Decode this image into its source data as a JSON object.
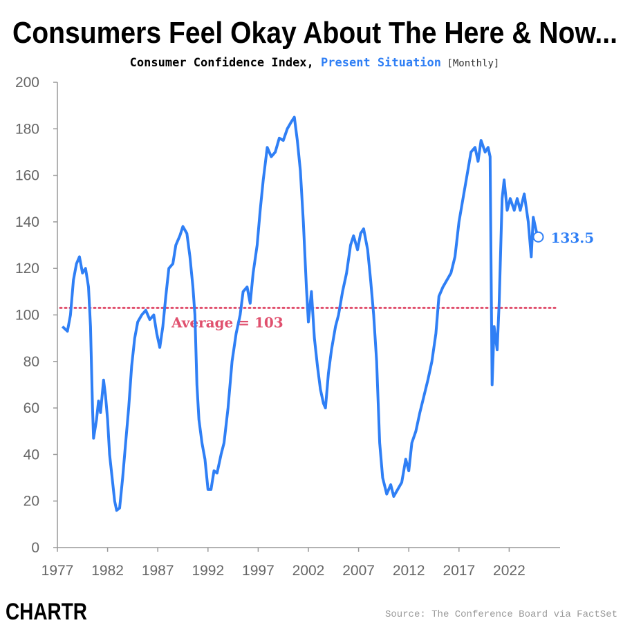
{
  "title": "Consumers Feel Okay About The Here & Now...",
  "subtitle": {
    "prefix": "Consumer Confidence Index, ",
    "highlight": "Present Situation",
    "suffix": " [Monthly]"
  },
  "source": "Source: The Conference Board via FactSet",
  "logo": "CHARTR",
  "colors": {
    "series": "#2f7ff5",
    "average": "#e0506e",
    "axis": "#999999"
  },
  "chart_data": {
    "type": "line",
    "title": "Consumers Feel Okay About The Here & Now...",
    "xlabel": "",
    "ylabel": "",
    "xlim": [
      1977,
      2025
    ],
    "ylim": [
      0,
      200
    ],
    "x_ticks": [
      "1977",
      "1982",
      "1987",
      "1992",
      "1997",
      "2002",
      "2007",
      "2012",
      "2017",
      "2022"
    ],
    "y_ticks": [
      "0",
      "20",
      "40",
      "60",
      "80",
      "100",
      "120",
      "140",
      "160",
      "180",
      "200"
    ],
    "grid": false,
    "average": {
      "value": 103,
      "label": "Average = 103"
    },
    "last_value_label": "133.5",
    "series": [
      {
        "name": "Present Situation",
        "x": [
          1977.5,
          1978.0,
          1978.3,
          1978.6,
          1978.9,
          1979.2,
          1979.5,
          1979.8,
          1980.1,
          1980.3,
          1980.5,
          1980.6,
          1980.9,
          1981.1,
          1981.3,
          1981.6,
          1981.8,
          1982.0,
          1982.2,
          1982.5,
          1982.7,
          1982.9,
          1983.2,
          1983.5,
          1983.8,
          1984.1,
          1984.4,
          1984.7,
          1985.0,
          1985.4,
          1985.8,
          1986.2,
          1986.6,
          1986.9,
          1987.2,
          1987.5,
          1987.8,
          1988.1,
          1988.5,
          1988.8,
          1989.2,
          1989.5,
          1989.9,
          1990.2,
          1990.5,
          1990.7,
          1990.9,
          1991.1,
          1991.4,
          1991.7,
          1992.0,
          1992.3,
          1992.6,
          1992.9,
          1993.3,
          1993.6,
          1994.0,
          1994.4,
          1994.8,
          1995.2,
          1995.5,
          1995.9,
          1996.2,
          1996.5,
          1996.9,
          1997.2,
          1997.5,
          1997.9,
          1998.3,
          1998.7,
          1999.1,
          1999.5,
          1999.9,
          2000.3,
          2000.6,
          2000.9,
          2001.2,
          2001.5,
          2001.8,
          2002.0,
          2002.3,
          2002.6,
          2002.9,
          2003.2,
          2003.5,
          2003.7,
          2004.0,
          2004.3,
          2004.7,
          2005.0,
          2005.4,
          2005.8,
          2006.2,
          2006.5,
          2006.9,
          2007.2,
          2007.5,
          2007.9,
          2008.2,
          2008.5,
          2008.8,
          2009.1,
          2009.4,
          2009.8,
          2010.2,
          2010.5,
          2010.9,
          2011.3,
          2011.7,
          2012.0,
          2012.3,
          2012.7,
          2013.1,
          2013.5,
          2013.9,
          2014.3,
          2014.7,
          2015.0,
          2015.4,
          2015.8,
          2016.2,
          2016.6,
          2017.0,
          2017.4,
          2017.8,
          2018.2,
          2018.6,
          2018.9,
          2019.2,
          2019.6,
          2019.9,
          2020.1,
          2020.3,
          2020.5,
          2020.8,
          2021.0,
          2021.3,
          2021.5,
          2021.8,
          2022.1,
          2022.5,
          2022.8,
          2023.1,
          2023.5,
          2023.9,
          2024.2,
          2024.4,
          2024.7,
          2024.9
        ],
        "values": [
          95,
          93,
          100,
          115,
          122,
          125,
          118,
          120,
          112,
          95,
          60,
          47,
          55,
          63,
          58,
          72,
          65,
          55,
          40,
          28,
          20,
          16,
          17,
          30,
          45,
          60,
          78,
          90,
          97,
          100,
          102,
          98,
          100,
          92,
          86,
          95,
          108,
          120,
          122,
          130,
          134,
          138,
          135,
          125,
          112,
          100,
          70,
          55,
          45,
          38,
          25,
          25,
          33,
          32,
          40,
          45,
          60,
          80,
          92,
          100,
          110,
          112,
          105,
          118,
          130,
          145,
          158,
          172,
          168,
          170,
          176,
          175,
          180,
          183,
          185,
          175,
          162,
          140,
          112,
          97,
          110,
          90,
          78,
          68,
          62,
          60,
          75,
          85,
          95,
          100,
          110,
          118,
          130,
          134,
          128,
          135,
          137,
          128,
          115,
          100,
          80,
          45,
          30,
          23,
          27,
          22,
          25,
          28,
          38,
          33,
          45,
          50,
          58,
          65,
          72,
          80,
          92,
          108,
          112,
          115,
          118,
          125,
          140,
          150,
          160,
          170,
          172,
          166,
          175,
          170,
          172,
          168,
          70,
          95,
          85,
          105,
          150,
          158,
          145,
          150,
          145,
          150,
          145,
          152,
          140,
          125,
          142,
          136,
          133.5
        ]
      }
    ]
  }
}
